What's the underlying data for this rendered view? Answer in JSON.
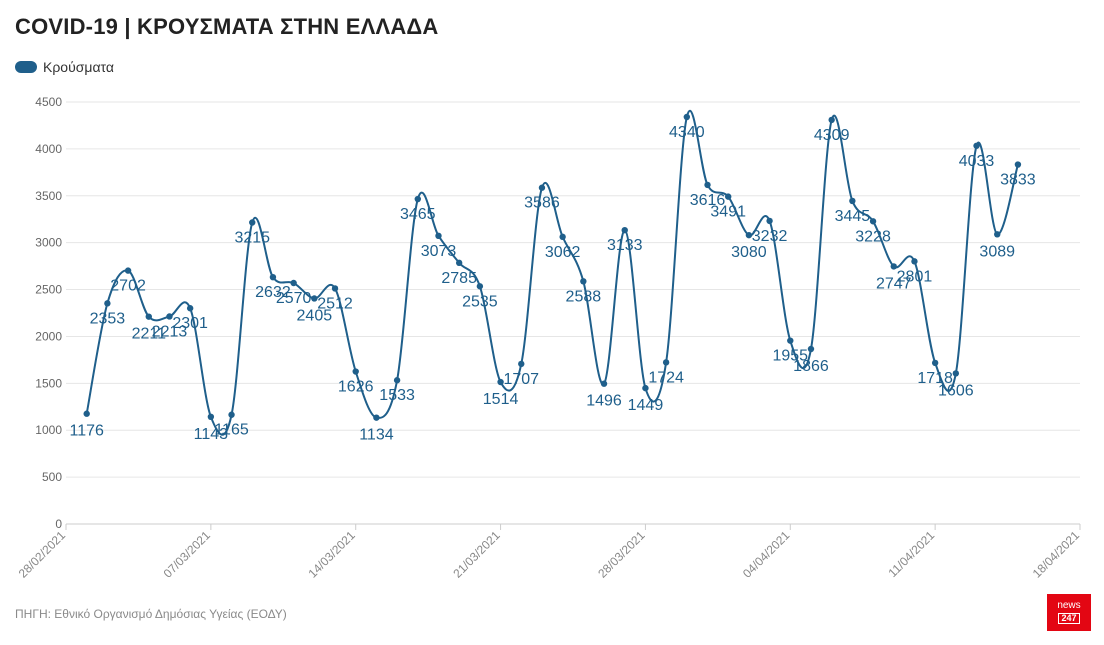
{
  "header": {
    "title": "COVID-19 | ΚΡΟΥΣΜΑΤΑ ΣΤΗΝ ΕΛΛΑΔΑ"
  },
  "footer": {
    "source": "ΠΗΓΗ: Εθνικό Οργανισμό Δημόσιας Υγείας (ΕΟΔΥ)"
  },
  "logo": {
    "top": "news",
    "bottom": "247",
    "color": "#e30613"
  },
  "colors": {
    "series": "#1f5f8b",
    "grid": "#e6e6e6",
    "axis": "#cccccc"
  },
  "chart_data": {
    "type": "line",
    "title": "COVID-19 | ΚΡΟΥΣΜΑΤΑ ΣΤΗΝ ΕΛΛΑΔΑ",
    "xlabel": "",
    "ylabel": "",
    "ylim": [
      0,
      4500
    ],
    "yticks": [
      0,
      500,
      1000,
      1500,
      2000,
      2500,
      3000,
      3500,
      4000,
      4500
    ],
    "x_range": [
      "2021-02-28",
      "2021-04-18"
    ],
    "xtick_labels": [
      "28/02/2021",
      "07/03/2021",
      "14/03/2021",
      "21/03/2021",
      "28/03/2021",
      "04/04/2021",
      "11/04/2021",
      "18/04/2021"
    ],
    "grid": true,
    "legend_position": "top-left",
    "series": [
      {
        "name": "Κρούσματα",
        "color": "#1f5f8b",
        "x": [
          "2021-03-01",
          "2021-03-02",
          "2021-03-03",
          "2021-03-04",
          "2021-03-05",
          "2021-03-06",
          "2021-03-07",
          "2021-03-08",
          "2021-03-09",
          "2021-03-10",
          "2021-03-11",
          "2021-03-12",
          "2021-03-13",
          "2021-03-14",
          "2021-03-15",
          "2021-03-16",
          "2021-03-17",
          "2021-03-18",
          "2021-03-19",
          "2021-03-20",
          "2021-03-21",
          "2021-03-22",
          "2021-03-23",
          "2021-03-24",
          "2021-03-25",
          "2021-03-26",
          "2021-03-27",
          "2021-03-28",
          "2021-03-29",
          "2021-03-30",
          "2021-03-31",
          "2021-04-01",
          "2021-04-02",
          "2021-04-03",
          "2021-04-04",
          "2021-04-05",
          "2021-04-06",
          "2021-04-07",
          "2021-04-08",
          "2021-04-09",
          "2021-04-10",
          "2021-04-11",
          "2021-04-12",
          "2021-04-13",
          "2021-04-14",
          "2021-04-15",
          "2021-04-16"
        ],
        "values": [
          1176,
          2353,
          2702,
          2211,
          2213,
          2301,
          1143,
          1165,
          3215,
          2632,
          2570,
          2405,
          2512,
          1626,
          1134,
          1533,
          3465,
          3073,
          2785,
          2535,
          1514,
          1707,
          3586,
          3062,
          2588,
          1496,
          3133,
          1449,
          1724,
          4340,
          3616,
          3491,
          3080,
          3232,
          1955,
          1866,
          4309,
          3445,
          3228,
          2747,
          2801,
          1718,
          1606,
          4033,
          3089,
          3833,
          null
        ]
      }
    ]
  }
}
